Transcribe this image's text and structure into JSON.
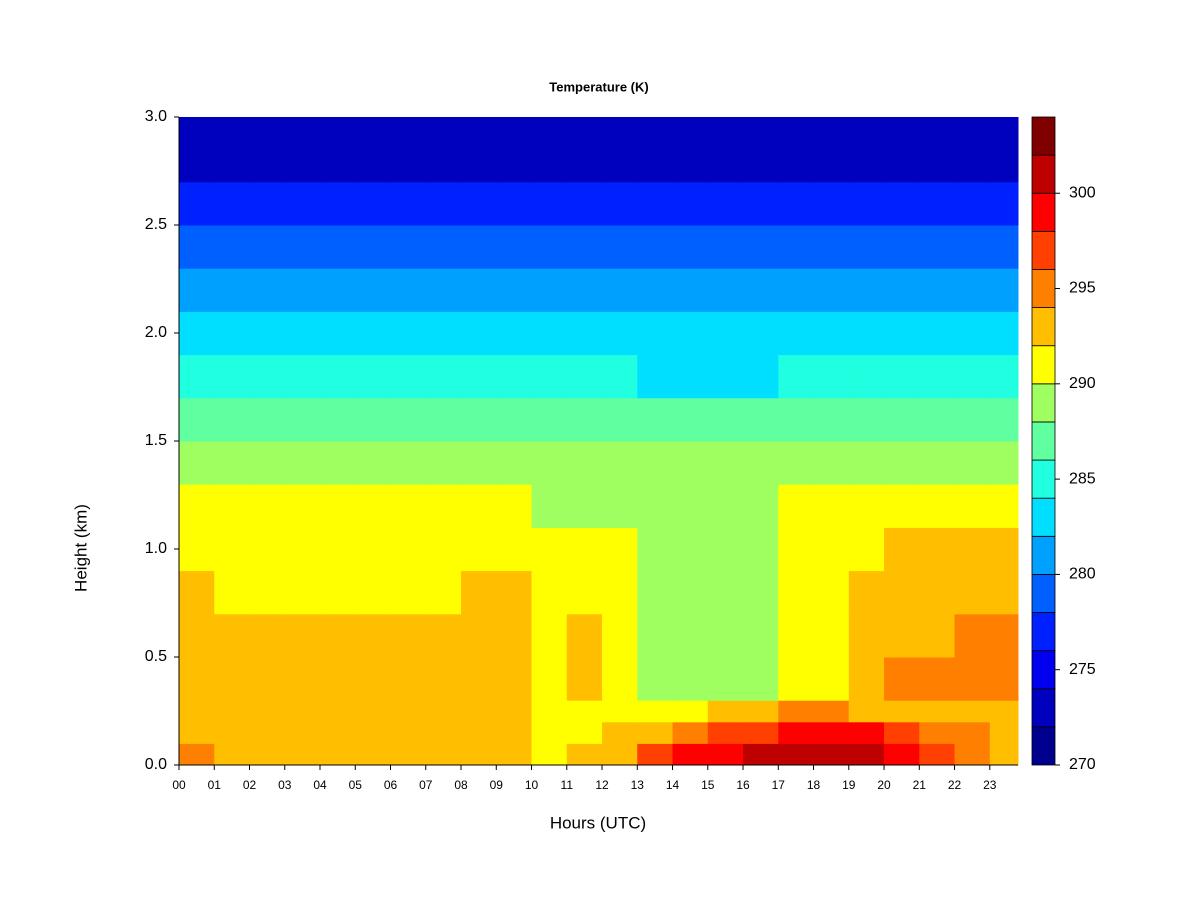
{
  "chart_data": {
    "type": "contour",
    "title": "Temperature (K)",
    "x_label": "Hours (UTC)",
    "y_label": "Height (km)",
    "x_bins": [
      0,
      1,
      2,
      3,
      4,
      5,
      6,
      7,
      8,
      9,
      10,
      11,
      12,
      13,
      14,
      15,
      16,
      17,
      18,
      19,
      20,
      21,
      22,
      23,
      23.8
    ],
    "y_bins": [
      0,
      0.1,
      0.2,
      0.3,
      0.5,
      0.7,
      0.9,
      1.1,
      1.3,
      1.5,
      1.7,
      1.9,
      2.1,
      2.3,
      2.5,
      2.7,
      3.0
    ],
    "z": [
      [
        294,
        293,
        293,
        293,
        293,
        293,
        293,
        293,
        293,
        293,
        291,
        292,
        293,
        296,
        298,
        299,
        300,
        300,
        301,
        300,
        298,
        297,
        294,
        293
      ],
      [
        293,
        293,
        293,
        293,
        293,
        293,
        293,
        293,
        293,
        293,
        291,
        291,
        292,
        293,
        295,
        297,
        297,
        298,
        299,
        298,
        296,
        295,
        294,
        293
      ],
      [
        293,
        293,
        293,
        292,
        292,
        292,
        292,
        292,
        292,
        292,
        291,
        291,
        291,
        291,
        291,
        292,
        292,
        294,
        294,
        293,
        293,
        293,
        293,
        293
      ],
      [
        293,
        293,
        292,
        293,
        293,
        293,
        293,
        293,
        293,
        293,
        291,
        293,
        291,
        289,
        289,
        289,
        289,
        291,
        291,
        293,
        294,
        294,
        294,
        294
      ],
      [
        293,
        293,
        292,
        293,
        293,
        293,
        293,
        293,
        293,
        293,
        291,
        293,
        291,
        289,
        289,
        289,
        289,
        291,
        291,
        293,
        293,
        293,
        295,
        295
      ],
      [
        293,
        291,
        291,
        291,
        291,
        291,
        291,
        291,
        293,
        293,
        291,
        291,
        291,
        289,
        289,
        289,
        289,
        291,
        291,
        293,
        293,
        293,
        293,
        293
      ],
      [
        291,
        291,
        291,
        291,
        291,
        291,
        291,
        291,
        291,
        291,
        291,
        291,
        291,
        289,
        289,
        289,
        289,
        291,
        291,
        291,
        292,
        292,
        292,
        292
      ],
      [
        290,
        290,
        290,
        290,
        290,
        290,
        290,
        290,
        290,
        290,
        289,
        289,
        289,
        289,
        289,
        289,
        289,
        290,
        290,
        290,
        290,
        290,
        291,
        291
      ],
      [
        288,
        288,
        288,
        288,
        288,
        288,
        288,
        288,
        288,
        288,
        288,
        288,
        288,
        288,
        288,
        288,
        288,
        288,
        288,
        288,
        288,
        288,
        288,
        288
      ],
      [
        286,
        286,
        286,
        286,
        286,
        286,
        286,
        286,
        286,
        286,
        286,
        286,
        286,
        286,
        286,
        286,
        286,
        286,
        286,
        286,
        286,
        286,
        286,
        286
      ],
      [
        284,
        284,
        284,
        284,
        284,
        284,
        284,
        284,
        284,
        284,
        284,
        284,
        284,
        283,
        283,
        283,
        283,
        284,
        284,
        284,
        284,
        284,
        284,
        284
      ],
      [
        282,
        282,
        282,
        282,
        282,
        282,
        282,
        282,
        282,
        282,
        282,
        282,
        282,
        282,
        282,
        282,
        282,
        282,
        282,
        282,
        282,
        282,
        282,
        282
      ],
      [
        280,
        280,
        280,
        280,
        280,
        280,
        280,
        280,
        280,
        280,
        280,
        280,
        280,
        280,
        280,
        280,
        280,
        280,
        280,
        280,
        280,
        280,
        280,
        280
      ],
      [
        278,
        278,
        278,
        278,
        278,
        278,
        278,
        278,
        278,
        278,
        278,
        278,
        278,
        278,
        278,
        278,
        278,
        278,
        278,
        278,
        278,
        278,
        278,
        278
      ],
      [
        276,
        276,
        276,
        276,
        276,
        276,
        276,
        276,
        276,
        276,
        276,
        276,
        276,
        277,
        277,
        276,
        276,
        276,
        276,
        276,
        276,
        276,
        276,
        276
      ],
      [
        273,
        273,
        273,
        273,
        273,
        273,
        273,
        273,
        273,
        273,
        273,
        273,
        273,
        273,
        273,
        273,
        273,
        273,
        273,
        273,
        273,
        273,
        273,
        273
      ]
    ],
    "levels": [
      270,
      272,
      274,
      276,
      278,
      280,
      282,
      284,
      286,
      288,
      290,
      292,
      294,
      296,
      298,
      300,
      302,
      304
    ],
    "colors": [
      "#00008f",
      "#0000bf",
      "#0000ef",
      "#0020ff",
      "#0060ff",
      "#00a0ff",
      "#00dfff",
      "#20ffdf",
      "#60ff9f",
      "#a0ff60",
      "#ffff00",
      "#ffbf00",
      "#ff8000",
      "#ff4000",
      "#ff0000",
      "#bf0000",
      "#800000"
    ],
    "xlim": [
      0,
      23.8
    ],
    "ylim": [
      0,
      3.0
    ],
    "zlim": [
      270,
      304
    ],
    "xticks": [
      {
        "value": 0,
        "label": "00"
      },
      {
        "value": 1,
        "label": "01"
      },
      {
        "value": 2,
        "label": "02"
      },
      {
        "value": 3,
        "label": "03"
      },
      {
        "value": 4,
        "label": "04"
      },
      {
        "value": 5,
        "label": "05"
      },
      {
        "value": 6,
        "label": "06"
      },
      {
        "value": 7,
        "label": "07"
      },
      {
        "value": 8,
        "label": "08"
      },
      {
        "value": 9,
        "label": "09"
      },
      10,
      11,
      12,
      13,
      14,
      15,
      16,
      17,
      18,
      19,
      20,
      21,
      22,
      23
    ],
    "yticks": [
      {
        "value": 0,
        "label": "0.0"
      },
      0.5,
      {
        "value": 1,
        "label": "1.0"
      },
      1.5,
      {
        "value": 2,
        "label": "2.0"
      },
      2.5,
      {
        "value": 3,
        "label": "3.0"
      }
    ],
    "zticks": [
      270,
      275,
      280,
      285,
      290,
      295,
      300
    ]
  }
}
